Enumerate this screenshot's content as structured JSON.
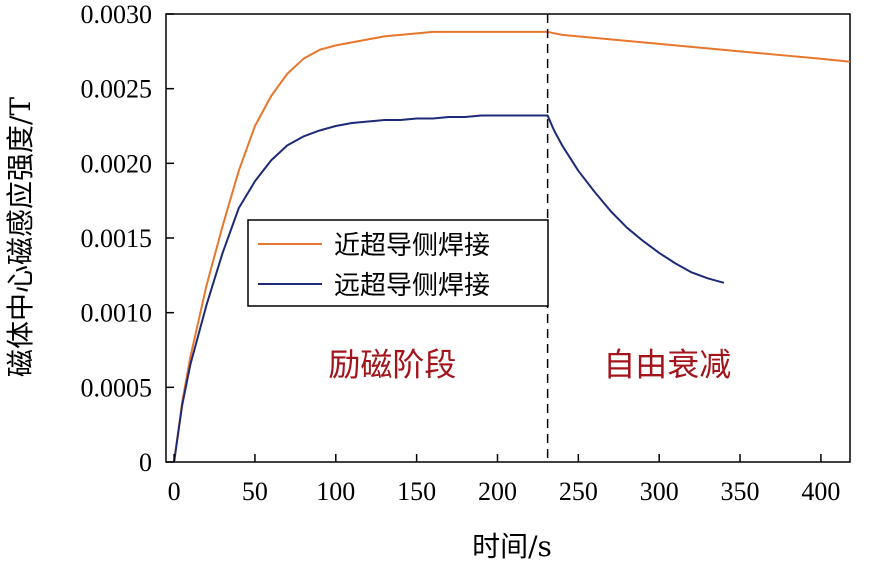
{
  "chart_data": {
    "type": "line",
    "xlabel": "时间/s",
    "ylabel": "磁体中心磁感应强度/T",
    "xlim": [
      -5,
      418
    ],
    "ylim": [
      0,
      0.003
    ],
    "xticks": [
      0,
      50,
      100,
      150,
      200,
      250,
      300,
      350,
      400
    ],
    "xtick_labels": [
      "0",
      "50",
      "100",
      "150",
      "200",
      "250",
      "300",
      "350",
      "400"
    ],
    "yticks": [
      0,
      0.0005,
      0.001,
      0.0015,
      0.002,
      0.0025,
      0.003
    ],
    "ytick_labels": [
      "0",
      "0.0005",
      "0.0010",
      "0.0015",
      "0.0020",
      "0.0025",
      "0.0030"
    ],
    "grid": false,
    "legend_position": "middle-left",
    "series": [
      {
        "name": "近超导侧焊接",
        "color": "#e8762d",
        "x": [
          0,
          5,
          10,
          20,
          30,
          40,
          50,
          60,
          70,
          80,
          90,
          100,
          110,
          120,
          130,
          140,
          150,
          160,
          170,
          180,
          190,
          200,
          210,
          220,
          231,
          240,
          260,
          280,
          300,
          320,
          340,
          360,
          380,
          400,
          418
        ],
        "y": [
          0,
          0.0004,
          0.0007,
          0.00118,
          0.00158,
          0.00195,
          0.00225,
          0.00245,
          0.0026,
          0.0027,
          0.00276,
          0.00279,
          0.00281,
          0.00283,
          0.00285,
          0.00286,
          0.00287,
          0.00288,
          0.00288,
          0.00288,
          0.00288,
          0.00288,
          0.00288,
          0.00288,
          0.00288,
          0.00286,
          0.00284,
          0.00282,
          0.0028,
          0.00278,
          0.00276,
          0.00274,
          0.00272,
          0.0027,
          0.00268
        ]
      },
      {
        "name": "远超导侧焊接",
        "color": "#1c2a78",
        "x": [
          0,
          5,
          10,
          20,
          30,
          40,
          50,
          60,
          70,
          80,
          90,
          100,
          110,
          120,
          130,
          140,
          150,
          160,
          170,
          180,
          190,
          200,
          210,
          220,
          231,
          235,
          240,
          250,
          260,
          270,
          280,
          290,
          300,
          310,
          320,
          330,
          340
        ],
        "y": [
          0,
          0.00038,
          0.00065,
          0.00105,
          0.0014,
          0.0017,
          0.00188,
          0.00202,
          0.00212,
          0.00218,
          0.00222,
          0.00225,
          0.00227,
          0.00228,
          0.00229,
          0.00229,
          0.0023,
          0.0023,
          0.00231,
          0.00231,
          0.00232,
          0.00232,
          0.00232,
          0.00232,
          0.00232,
          0.00222,
          0.00212,
          0.00195,
          0.00181,
          0.00168,
          0.00157,
          0.00148,
          0.0014,
          0.00133,
          0.00127,
          0.00123,
          0.0012
        ]
      }
    ],
    "divider_x": 231,
    "annotations": [
      {
        "text": "励磁阶段",
        "x": 135,
        "y": 0.00058,
        "color": "#a3141a"
      },
      {
        "text": "自由衰减",
        "x": 305,
        "y": 0.00058,
        "color": "#a3141a"
      }
    ]
  }
}
